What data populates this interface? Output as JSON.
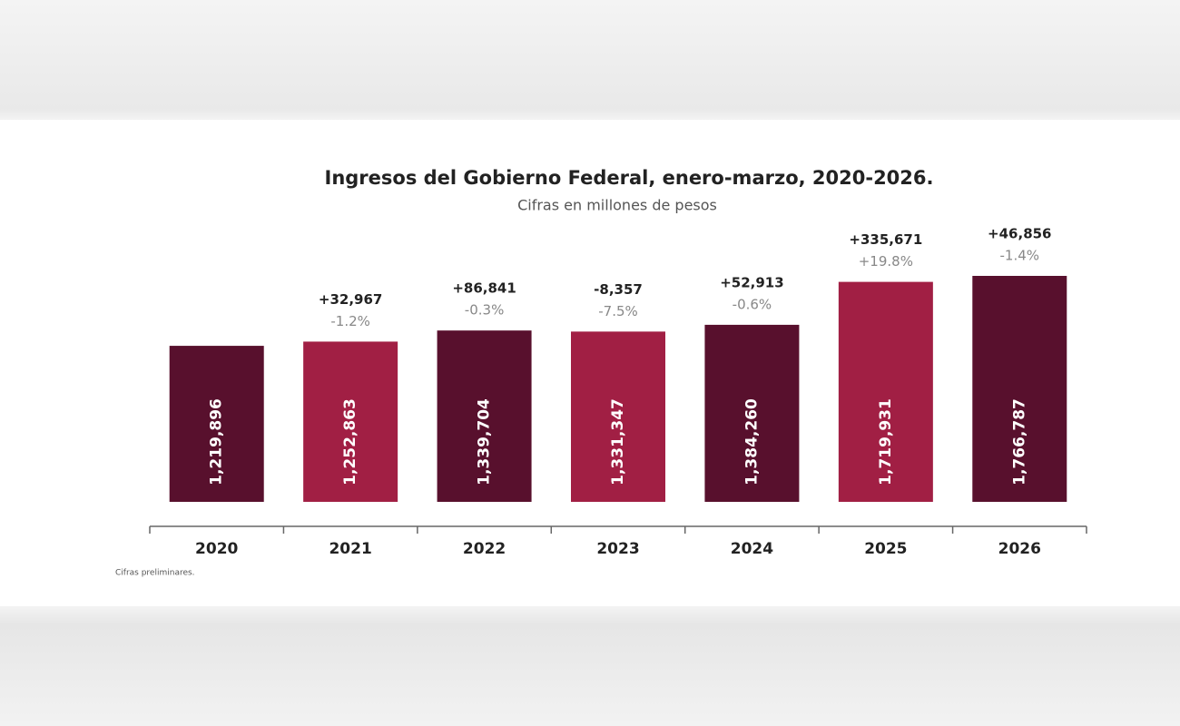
{
  "chart_data": {
    "type": "bar",
    "title": "Ingresos del Gobierno Federal, enero-marzo, 2020-2026.",
    "subtitle": "Cifras en millones de pesos",
    "categories": [
      "2020",
      "2021",
      "2022",
      "2023",
      "2024",
      "2025",
      "2026"
    ],
    "values": [
      1219896,
      1252863,
      1339704,
      1331347,
      1384260,
      1719931,
      1766787
    ],
    "value_labels": [
      "1,219,896",
      "1,252,863",
      "1,339,704",
      "1,331,347",
      "1,384,260",
      "1,719,931",
      "1,766,787"
    ],
    "colors": [
      "#58102d",
      "#a11f44",
      "#58102d",
      "#a11f44",
      "#58102d",
      "#a11f44",
      "#58102d"
    ],
    "changes": [
      null,
      "+32,967",
      "+86,841",
      "-8,357",
      "+52,913",
      "+335,671",
      "+46,856"
    ],
    "change_percents": [
      null,
      "-1.2%",
      "-0.3%",
      "-7.5%",
      "-0.6%",
      "+19.8%",
      "-1.4%"
    ],
    "footnote": "Cifras preliminares."
  }
}
